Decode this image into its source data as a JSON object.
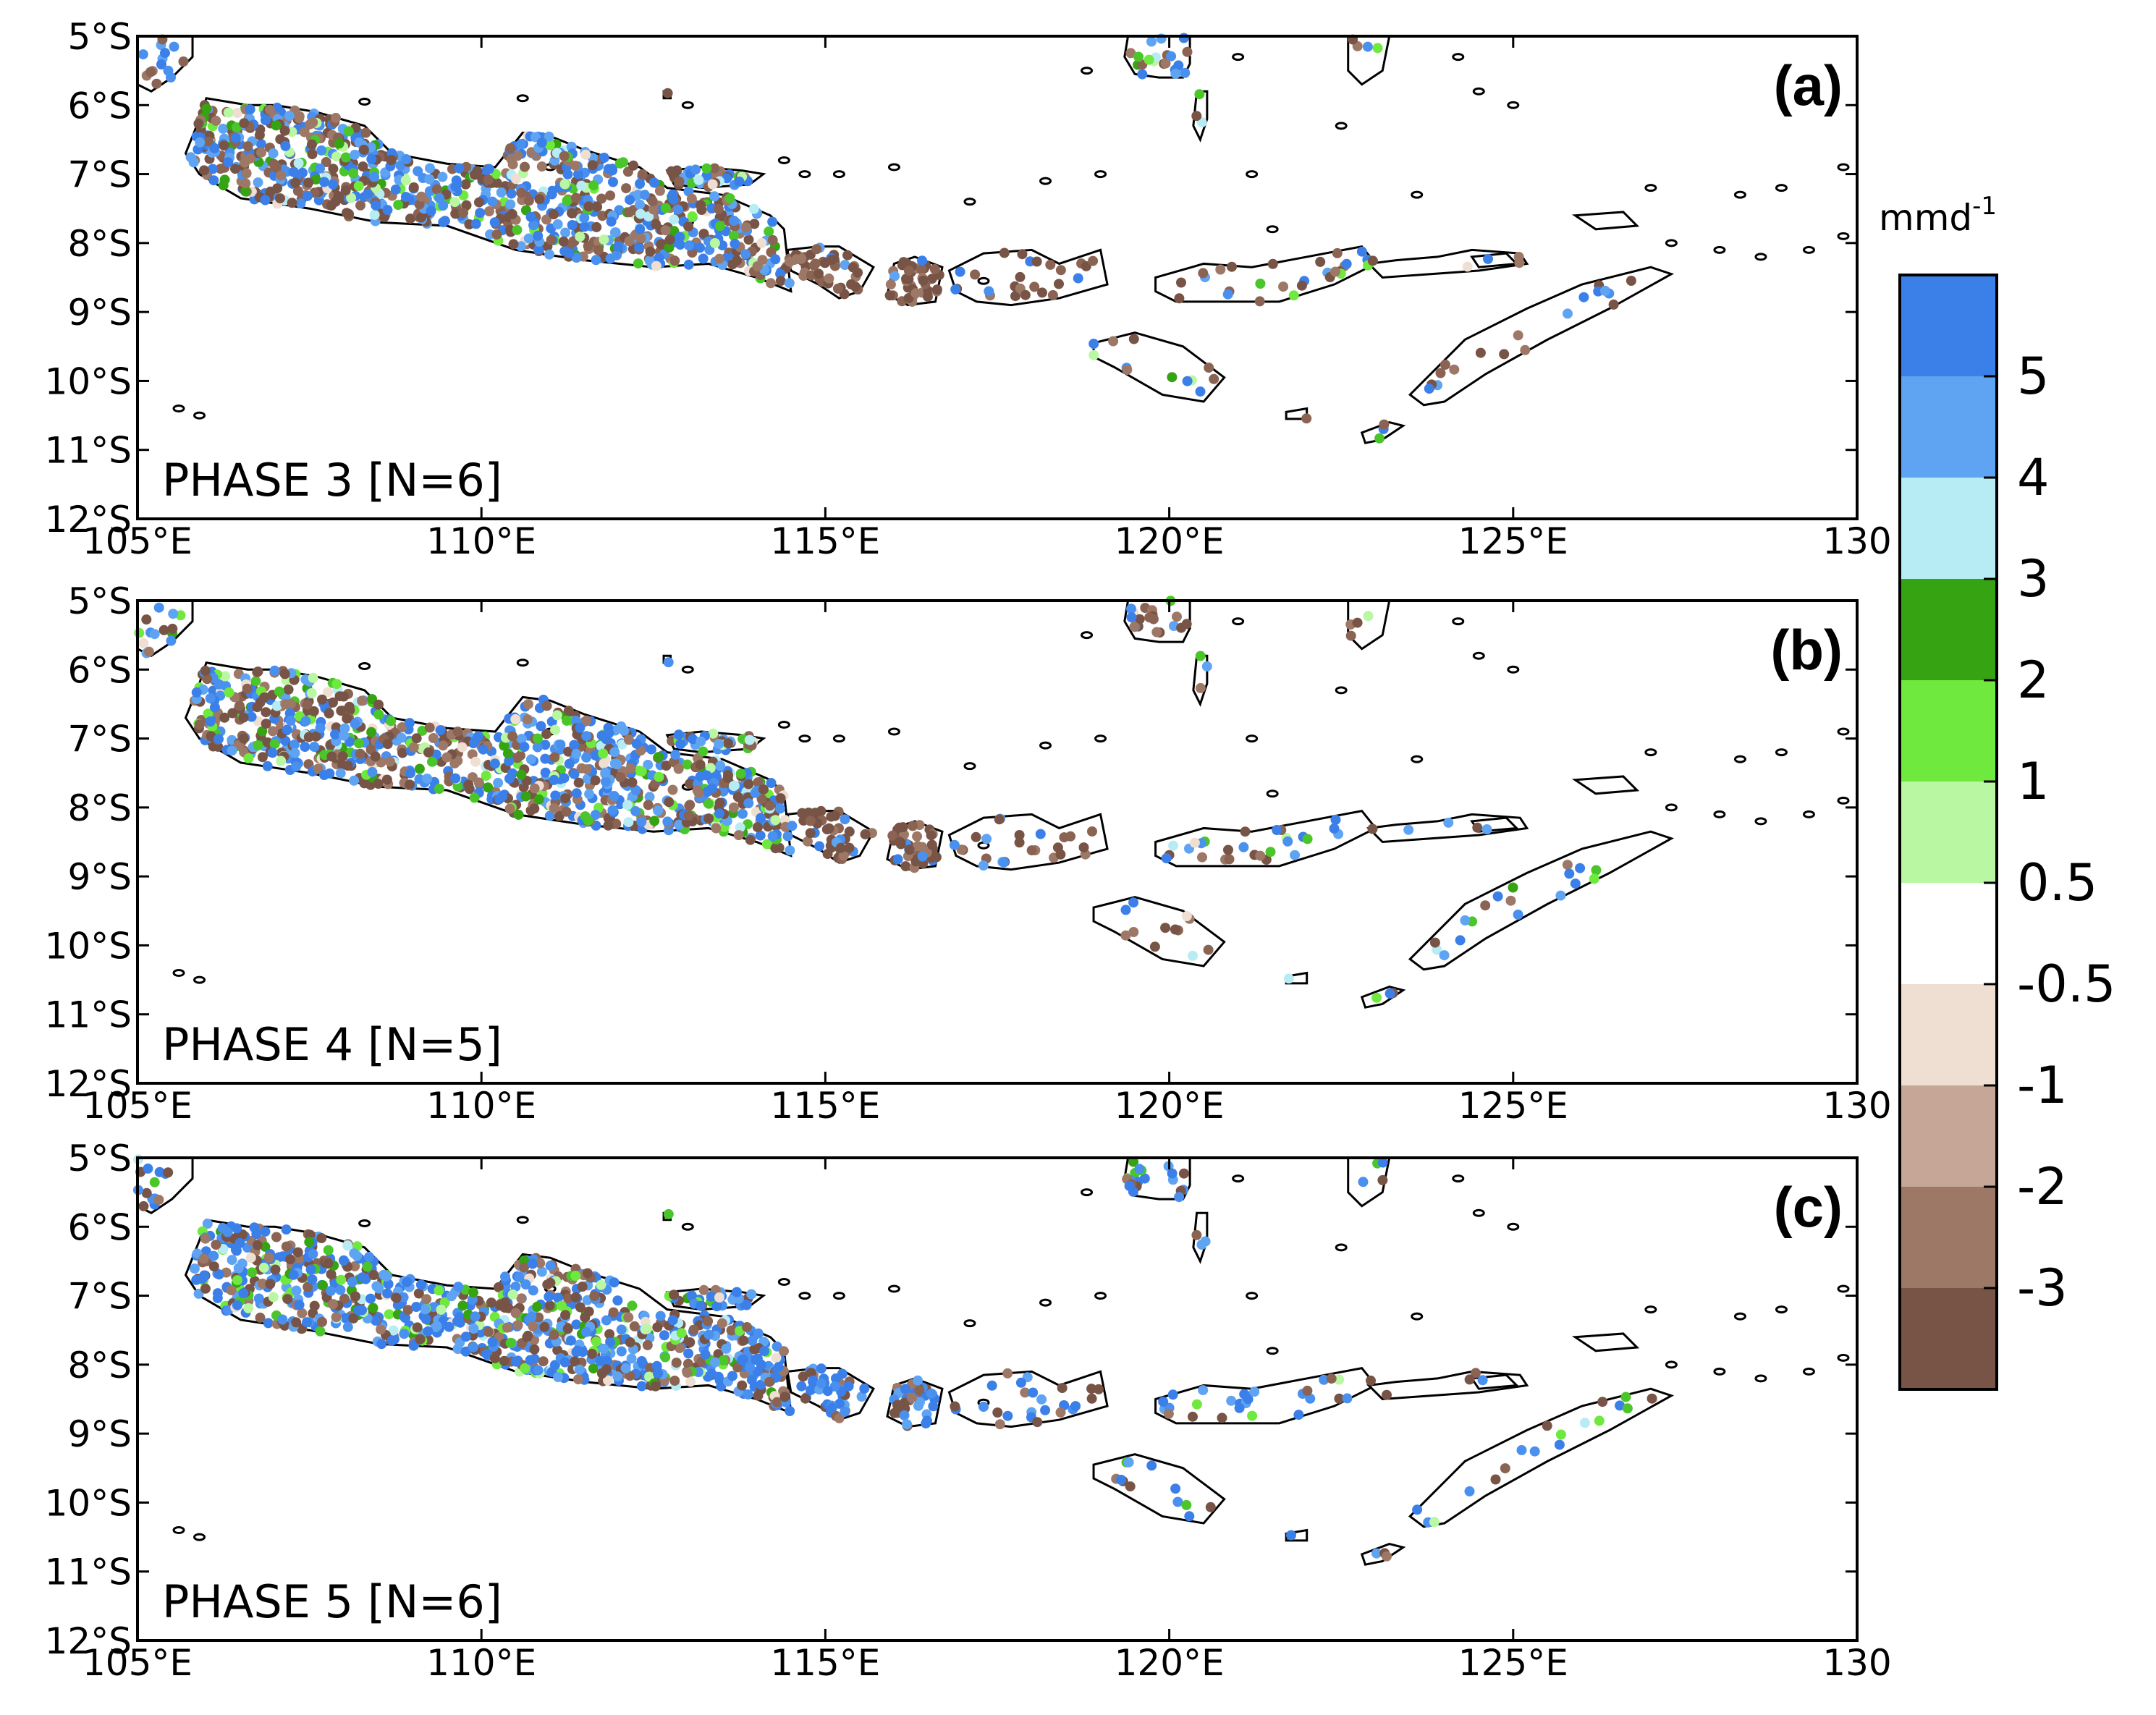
{
  "figure": {
    "units_label": "mmd",
    "units_exponent": "-1"
  },
  "colorbar": {
    "colors": [
      "#3b7fe8",
      "#5fa4f3",
      "#b8ecf5",
      "#35a312",
      "#6fe93e",
      "#b9f7a2",
      "#ffffff",
      "#efdfd3",
      "#c6a696",
      "#9e7866",
      "#785446"
    ],
    "tick_labels": [
      "5",
      "4",
      "3",
      "2",
      "1",
      "0.5",
      "-0.5",
      "-1",
      "-2",
      "-3"
    ]
  },
  "chart_data": [
    {
      "type": "map",
      "panel": "(a)",
      "annotation": "PHASE 3 [N=6]",
      "lon_range": [
        105,
        130
      ],
      "lat_range": [
        -12,
        -5
      ],
      "x_ticks": [
        "105°E",
        "110°E",
        "115°E",
        "120°E",
        "125°E",
        "130"
      ],
      "y_ticks": [
        "5°S",
        "6°S",
        "7°S",
        "8°S",
        "9°S",
        "10°S",
        "11°S",
        "12°S"
      ],
      "station_mix": {
        "blue": 0.4,
        "green": 0.1,
        "light": 0.05,
        "brown": 0.45
      },
      "region_mix": {
        "bali": {
          "blue": 0.05,
          "brown": 0.9
        },
        "lombok_east": {
          "blue": 0.08,
          "brown": 0.85
        }
      }
    },
    {
      "type": "map",
      "panel": "(b)",
      "annotation": "PHASE 4 [N=5]",
      "lon_range": [
        105,
        130
      ],
      "lat_range": [
        -12,
        -5
      ],
      "x_ticks": [
        "105°E",
        "110°E",
        "115°E",
        "120°E",
        "125°E",
        "130"
      ],
      "y_ticks": [
        "5°S",
        "6°S",
        "7°S",
        "8°S",
        "9°S",
        "10°S",
        "11°S",
        "12°S"
      ],
      "station_mix": {
        "blue": 0.38,
        "green": 0.12,
        "light": 0.08,
        "brown": 0.42
      },
      "region_mix": {
        "bali": {
          "blue": 0.3,
          "brown": 0.6
        },
        "lombok_east": {
          "blue": 0.15,
          "brown": 0.7
        }
      }
    },
    {
      "type": "map",
      "panel": "(c)",
      "annotation": "PHASE 5 [N=6]",
      "lon_range": [
        105,
        130
      ],
      "lat_range": [
        -12,
        -5
      ],
      "x_ticks": [
        "105°E",
        "110°E",
        "115°E",
        "120°E",
        "125°E",
        "130"
      ],
      "y_ticks": [
        "5°S",
        "6°S",
        "7°S",
        "8°S",
        "9°S",
        "10°S",
        "11°S",
        "12°S"
      ],
      "station_mix": {
        "blue": 0.5,
        "green": 0.12,
        "light": 0.06,
        "brown": 0.32
      },
      "region_mix": {
        "bali": {
          "blue": 0.85,
          "brown": 0.1
        },
        "lombok_east": {
          "blue": 0.55,
          "brown": 0.3
        }
      }
    }
  ]
}
